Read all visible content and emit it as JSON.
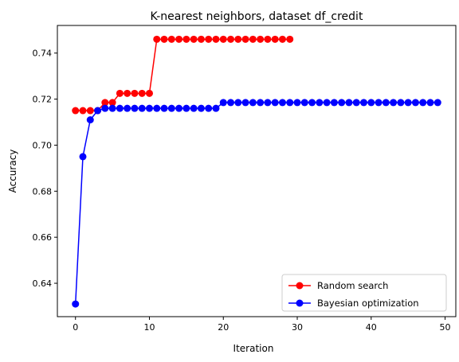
{
  "chart_data": {
    "type": "line",
    "title": "K-nearest neighbors, dataset df_credit",
    "xlabel": "Iteration",
    "ylabel": "Accuracy",
    "xlim": [
      -2.45,
      51.45
    ],
    "ylim": [
      0.6255,
      0.752
    ],
    "xticks": [
      0,
      10,
      20,
      30,
      40,
      50
    ],
    "yticks": [
      0.64,
      0.66,
      0.68,
      0.7,
      0.72,
      0.74
    ],
    "ytick_labels": [
      "0.64",
      "0.66",
      "0.68",
      "0.70",
      "0.72",
      "0.74"
    ],
    "grid": false,
    "legend_position": "lower-right",
    "series": [
      {
        "name": "Random search",
        "color": "#ff0000",
        "marker": "circle",
        "x": [
          0,
          1,
          2,
          3,
          4,
          5,
          6,
          7,
          8,
          9,
          10,
          11,
          12,
          13,
          14,
          15,
          16,
          17,
          18,
          19,
          20,
          21,
          22,
          23,
          24,
          25,
          26,
          27,
          28,
          29
        ],
        "y": [
          0.715,
          0.715,
          0.715,
          0.715,
          0.7185,
          0.7185,
          0.7225,
          0.7225,
          0.7225,
          0.7225,
          0.7225,
          0.746,
          0.746,
          0.746,
          0.746,
          0.746,
          0.746,
          0.746,
          0.746,
          0.746,
          0.746,
          0.746,
          0.746,
          0.746,
          0.746,
          0.746,
          0.746,
          0.746,
          0.746,
          0.746
        ]
      },
      {
        "name": "Bayesian optimization",
        "color": "#0000ff",
        "marker": "circle",
        "x": [
          0,
          1,
          2,
          3,
          4,
          5,
          6,
          7,
          8,
          9,
          10,
          11,
          12,
          13,
          14,
          15,
          16,
          17,
          18,
          19,
          20,
          21,
          22,
          23,
          24,
          25,
          26,
          27,
          28,
          29,
          30,
          31,
          32,
          33,
          34,
          35,
          36,
          37,
          38,
          39,
          40,
          41,
          42,
          43,
          44,
          45,
          46,
          47,
          48,
          49
        ],
        "y": [
          0.631,
          0.695,
          0.711,
          0.715,
          0.716,
          0.716,
          0.716,
          0.716,
          0.716,
          0.716,
          0.716,
          0.716,
          0.716,
          0.716,
          0.716,
          0.716,
          0.716,
          0.716,
          0.716,
          0.716,
          0.7185,
          0.7185,
          0.7185,
          0.7185,
          0.7185,
          0.7185,
          0.7185,
          0.7185,
          0.7185,
          0.7185,
          0.7185,
          0.7185,
          0.7185,
          0.7185,
          0.7185,
          0.7185,
          0.7185,
          0.7185,
          0.7185,
          0.7185,
          0.7185,
          0.7185,
          0.7185,
          0.7185,
          0.7185,
          0.7185,
          0.7185,
          0.7185,
          0.7185,
          0.7185
        ]
      }
    ]
  }
}
